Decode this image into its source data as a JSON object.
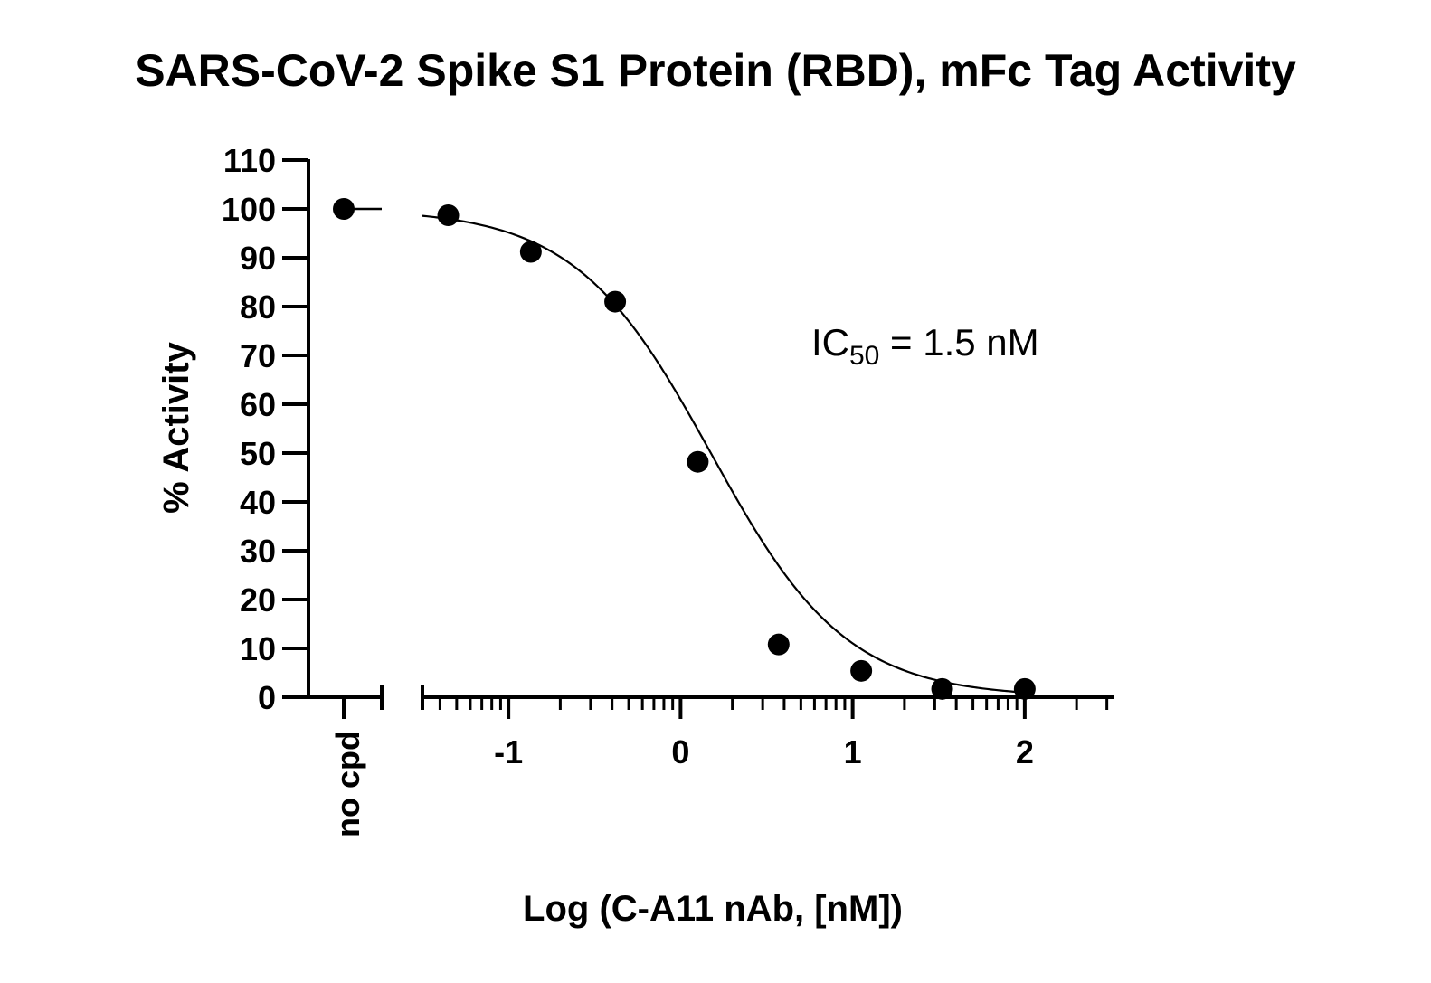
{
  "chart_data": {
    "type": "scatter",
    "title": "SARS-CoV-2 Spike S1 Protein (RBD), mFc Tag Activity",
    "xlabel": "Log (C-A11 nAb, [nM])",
    "ylabel": "% Activity",
    "xlim": [
      -1.5,
      2.5
    ],
    "ylim": [
      0,
      110
    ],
    "x_ticks": [
      "-1",
      "0",
      "1",
      "2"
    ],
    "y_ticks": [
      "0",
      "10",
      "20",
      "30",
      "40",
      "50",
      "60",
      "70",
      "80",
      "90",
      "100",
      "110"
    ],
    "x_tick_values": [
      -1,
      0,
      1,
      2
    ],
    "y_tick_values": [
      0,
      10,
      20,
      30,
      40,
      50,
      60,
      70,
      80,
      90,
      100,
      110
    ],
    "control": {
      "label": "no cpd",
      "y": 100
    },
    "series": [
      {
        "x": [
          -1.35,
          -0.87,
          -0.38,
          0.1,
          0.57,
          1.05,
          1.52,
          2.0
        ],
        "y": [
          98.7,
          91.2,
          81,
          48.2,
          10.8,
          5.4,
          1.7,
          1.7
        ],
        "marker": "circle",
        "color": "#000000"
      }
    ],
    "fit": {
      "model": "four-parameter logistic",
      "top": 100,
      "bottom": 0,
      "log_ic50": 0.176,
      "hill_slope": 1.1
    },
    "annotation": {
      "prefix": "IC",
      "subscript": "50",
      "suffix": " = 1.5 nM"
    },
    "grid": false,
    "legend": "none"
  }
}
